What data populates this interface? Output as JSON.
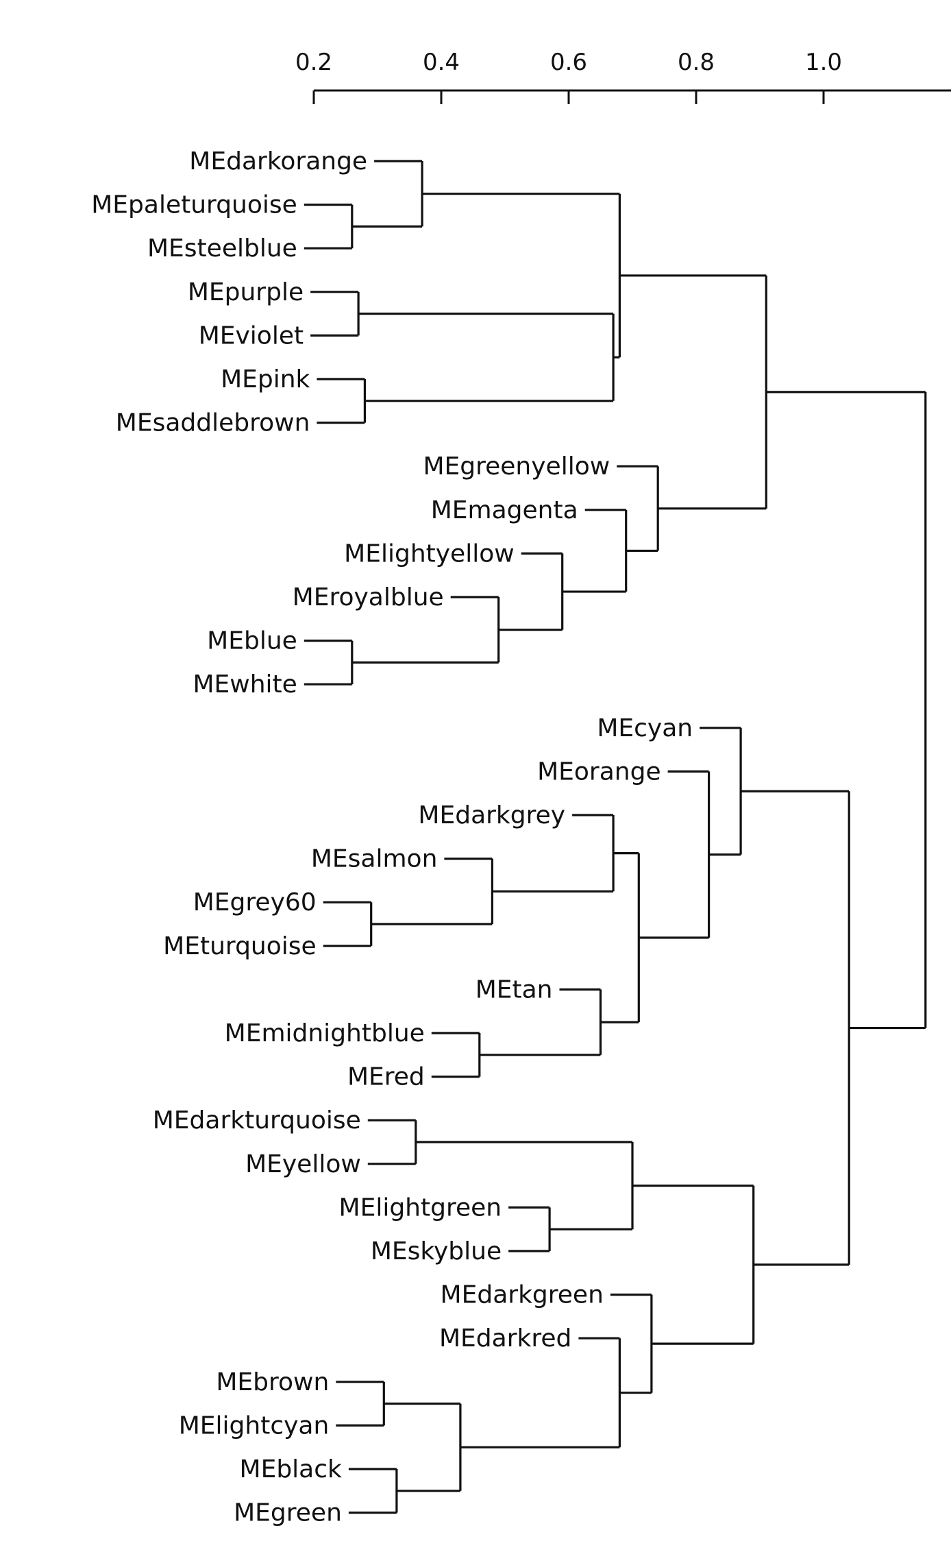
{
  "axis": {
    "ticks": [
      "0.2",
      "0.4",
      "0.6",
      "0.8",
      "1.0"
    ],
    "tick_values": [
      0.2,
      0.4,
      0.6,
      0.8,
      1.0
    ]
  },
  "leaves": [
    "MEdarkorange",
    "MEpaleturquoise",
    "MEsteelblue",
    "MEpurple",
    "MEviolet",
    "MEpink",
    "MEsaddlebrown",
    "MEgreenyellow",
    "MEmagenta",
    "MElightyellow",
    "MEroyalblue",
    "MEblue",
    "MEwhite",
    "MEcyan",
    "MEorange",
    "MEdarkgrey",
    "MEsalmon",
    "MEgrey60",
    "MEturquoise",
    "MEtan",
    "MEmidnightblue",
    "MEred",
    "MEdarkturquoise",
    "MEyellow",
    "MElightgreen",
    "MEskyblue",
    "MEdarkgreen",
    "MEdarkred",
    "MEbrown",
    "MElightcyan",
    "MEblack",
    "MEgreen"
  ],
  "merges": [
    {
      "a": "MEpaleturquoise",
      "b": "MEsteelblue",
      "height": 0.26
    },
    {
      "a": "MEdarkorange",
      "b": 0,
      "height": 0.37
    },
    {
      "a": "MEpurple",
      "b": "MEviolet",
      "height": 0.27
    },
    {
      "a": "MEpink",
      "b": "MEsaddlebrown",
      "height": 0.28
    },
    {
      "a": 2,
      "b": 3,
      "height": 0.67
    },
    {
      "a": 1,
      "b": 4,
      "height": 0.68
    },
    {
      "a": "MEblue",
      "b": "MEwhite",
      "height": 0.26
    },
    {
      "a": "MEroyalblue",
      "b": 6,
      "height": 0.49
    },
    {
      "a": "MElightyellow",
      "b": 7,
      "height": 0.59
    },
    {
      "a": "MEmagenta",
      "b": 8,
      "height": 0.69
    },
    {
      "a": "MEgreenyellow",
      "b": 9,
      "height": 0.74
    },
    {
      "a": 5,
      "b": 10,
      "height": 0.91
    },
    {
      "a": "MEgrey60",
      "b": "MEturquoise",
      "height": 0.29
    },
    {
      "a": "MEsalmon",
      "b": 12,
      "height": 0.48
    },
    {
      "a": "MEdarkgrey",
      "b": 13,
      "height": 0.67
    },
    {
      "a": "MEmidnightblue",
      "b": "MEred",
      "height": 0.46
    },
    {
      "a": "MEtan",
      "b": 15,
      "height": 0.65
    },
    {
      "a": 14,
      "b": 16,
      "height": 0.71
    },
    {
      "a": "MEorange",
      "b": 17,
      "height": 0.82
    },
    {
      "a": "MEcyan",
      "b": 18,
      "height": 0.87
    },
    {
      "a": "MEdarkturquoise",
      "b": "MEyellow",
      "height": 0.36
    },
    {
      "a": "MElightgreen",
      "b": "MEskyblue",
      "height": 0.57
    },
    {
      "a": 20,
      "b": 21,
      "height": 0.7
    },
    {
      "a": "MEbrown",
      "b": "MElightcyan",
      "height": 0.31
    },
    {
      "a": "MEblack",
      "b": "MEgreen",
      "height": 0.33
    },
    {
      "a": 23,
      "b": 24,
      "height": 0.43
    },
    {
      "a": "MEdarkred",
      "b": 25,
      "height": 0.68
    },
    {
      "a": "MEdarkgreen",
      "b": 26,
      "height": 0.73
    },
    {
      "a": 22,
      "b": 27,
      "height": 0.89
    },
    {
      "a": 19,
      "b": 28,
      "height": 1.04
    },
    {
      "a": 11,
      "b": 29,
      "height": 1.16
    }
  ]
}
